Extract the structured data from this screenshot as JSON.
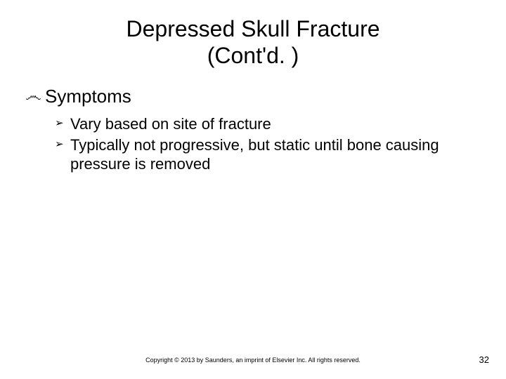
{
  "title_line1": "Depressed Skull Fracture",
  "title_line2": "(Cont'd. )",
  "section_heading": "Symptoms",
  "sub_bullets": [
    "Vary based on site of fracture",
    "Typically not progressive, but static until bone causing pressure is removed"
  ],
  "footer": "Copyright © 2013 by Saunders, an imprint of Elsevier Inc. All rights reserved.",
  "page_number": "32",
  "bullet_l1_glyph": "෴",
  "bullet_l2_glyph": "➢",
  "colors": {
    "background": "#ffffff",
    "text": "#000000"
  },
  "fontsize": {
    "title": 32,
    "level1": 26,
    "level2": 22,
    "footer": 9,
    "pagenum": 13
  }
}
